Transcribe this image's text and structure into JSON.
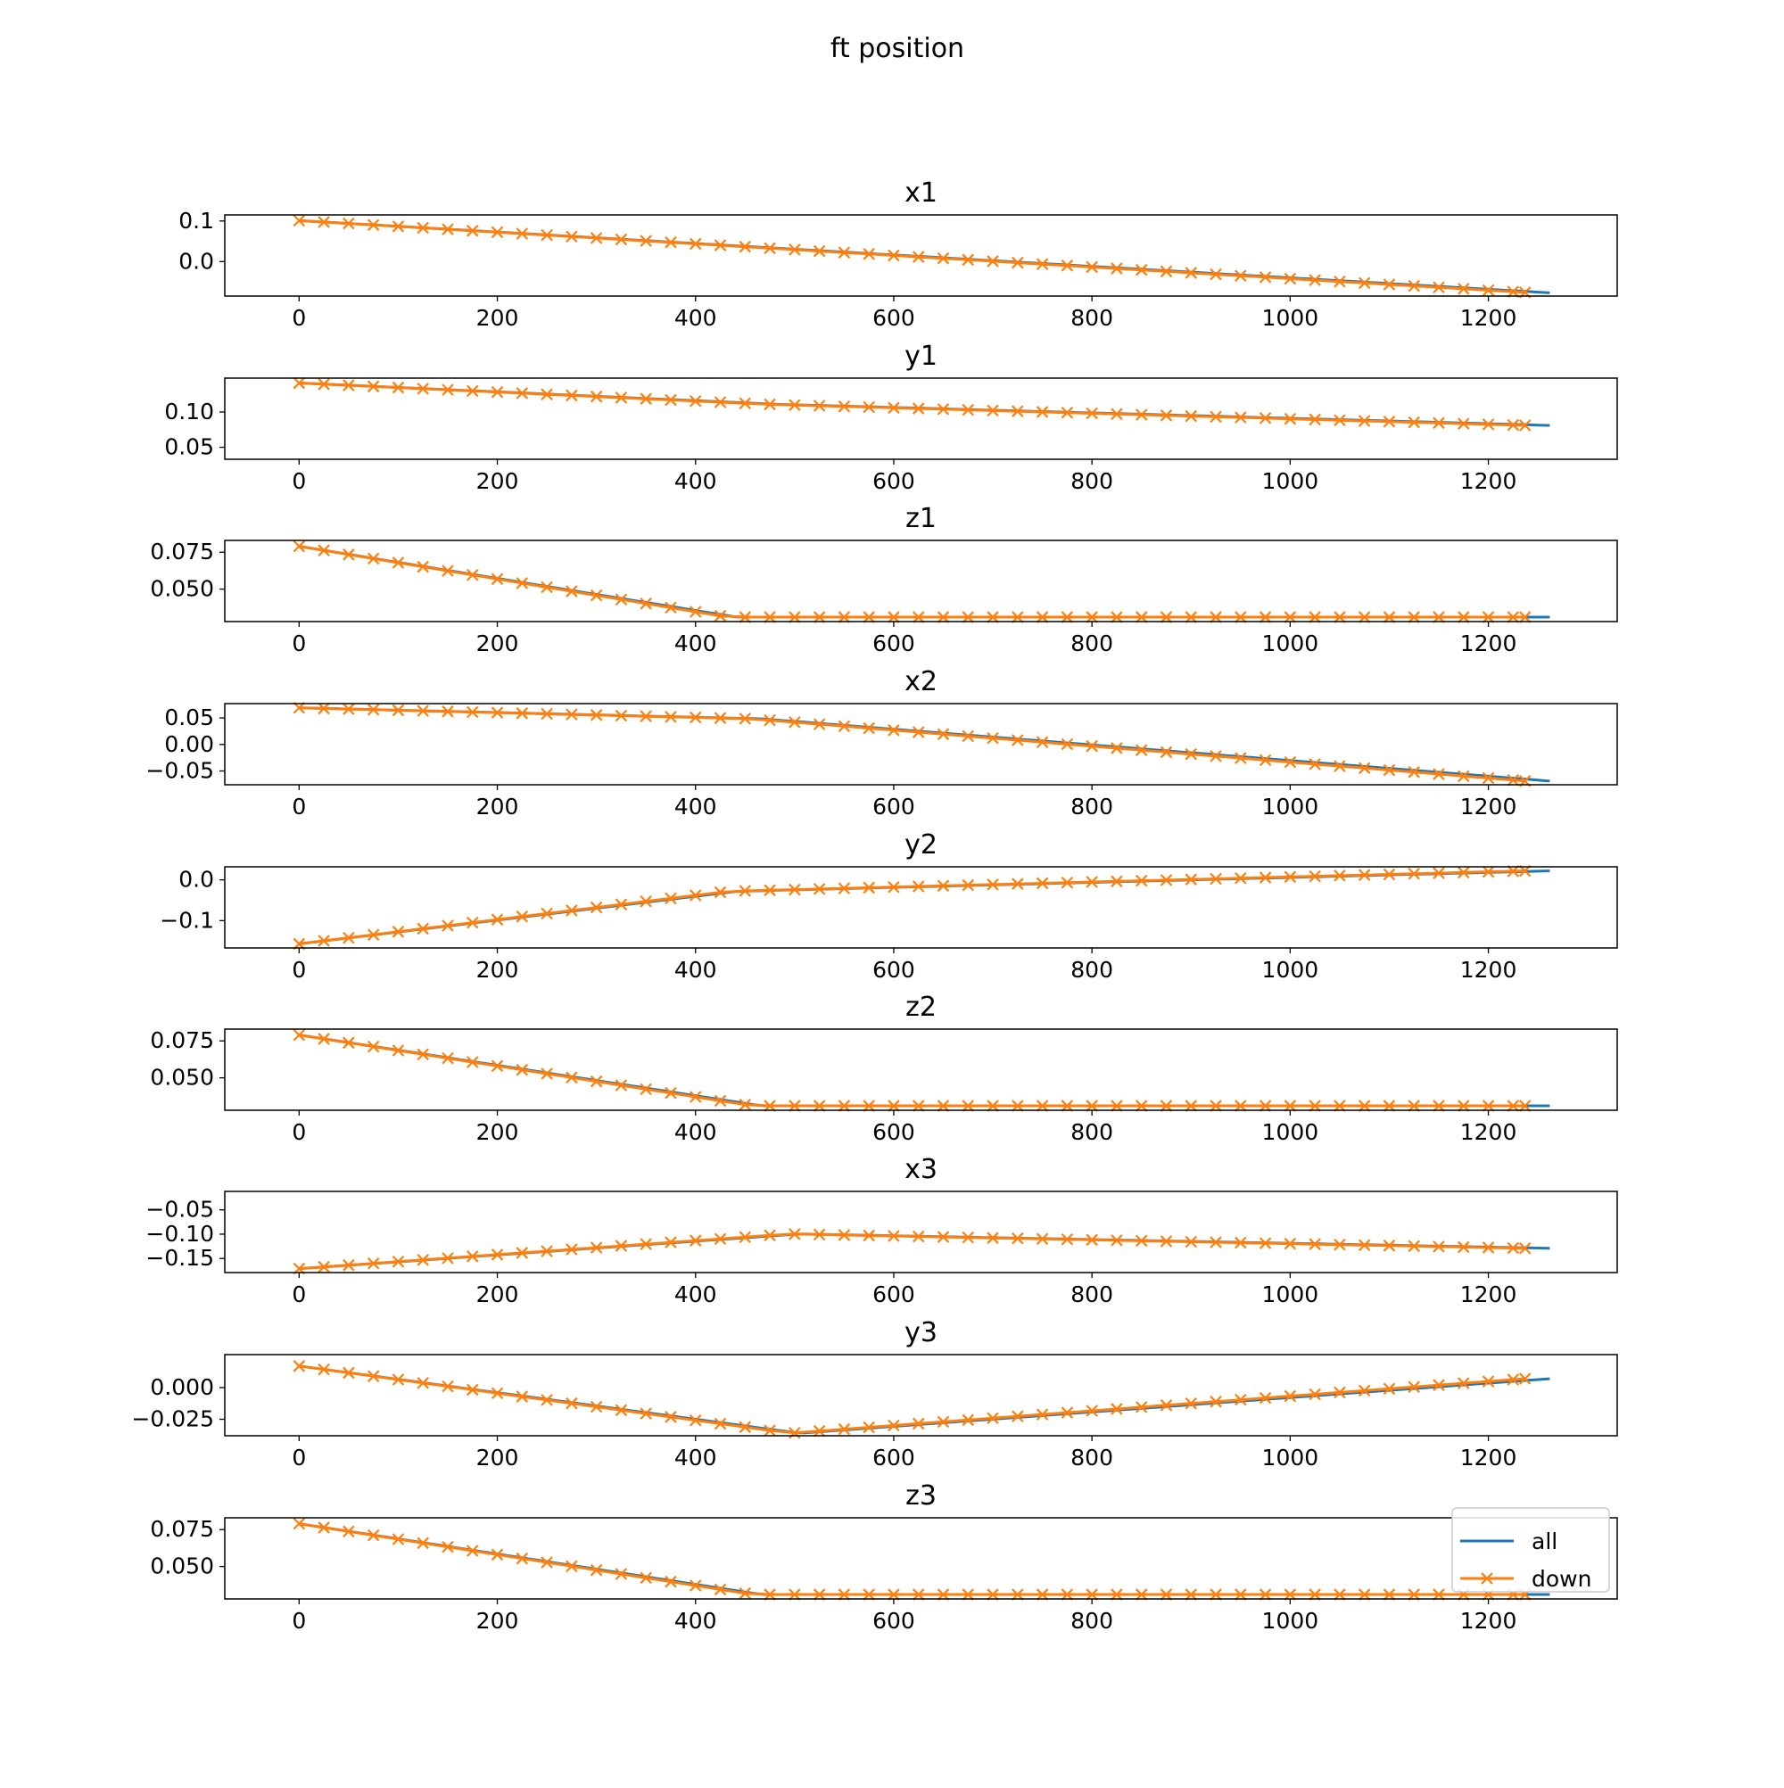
{
  "figure": {
    "suptitle": "ft position"
  },
  "colors": {
    "all": "#1f77b4",
    "down": "#ff7f0e",
    "axes": "#000000",
    "legend_border": "#cccccc"
  },
  "legend": {
    "entries": [
      "all",
      "down"
    ],
    "placement": "lower-right of last subplot"
  },
  "chart_data": [
    {
      "type": "line",
      "title": "x1",
      "xlim": [
        -75,
        1330
      ],
      "ylim": [
        -0.085,
        0.115
      ],
      "xticks": [
        0,
        200,
        400,
        600,
        800,
        1000,
        1200
      ],
      "xtick_labels": [
        "0",
        "200",
        "400",
        "600",
        "800",
        "1000",
        "1200"
      ],
      "yticks": [
        0.1,
        0.0
      ],
      "ytick_labels": [
        "0.1",
        "0.0"
      ],
      "series": [
        {
          "name": "all",
          "x": [
            0,
            1262
          ],
          "y": [
            0.101,
            -0.077
          ]
        },
        {
          "name": "down",
          "x": [
            0,
            1237
          ],
          "y": [
            0.101,
            -0.076
          ]
        }
      ]
    },
    {
      "type": "line",
      "title": "y1",
      "xlim": [
        -75,
        1330
      ],
      "ylim": [
        0.033,
        0.148
      ],
      "xticks": [
        0,
        200,
        400,
        600,
        800,
        1000,
        1200
      ],
      "xtick_labels": [
        "0",
        "200",
        "400",
        "600",
        "800",
        "1000",
        "1200"
      ],
      "yticks": [
        0.1,
        0.05
      ],
      "ytick_labels": [
        "0.10",
        "0.05"
      ],
      "series": [
        {
          "name": "all",
          "x": [
            0,
            1262
          ],
          "y": [
            0.141,
            0.081
          ]
        },
        {
          "name": "down",
          "x": [
            0,
            1237
          ],
          "y": [
            0.141,
            0.081
          ]
        }
      ]
    },
    {
      "type": "line",
      "title": "z1",
      "xlim": [
        -75,
        1330
      ],
      "ylim": [
        0.028,
        0.083
      ],
      "xticks": [
        0,
        200,
        400,
        600,
        800,
        1000,
        1200
      ],
      "xtick_labels": [
        "0",
        "200",
        "400",
        "600",
        "800",
        "1000",
        "1200"
      ],
      "yticks": [
        0.075,
        0.05
      ],
      "ytick_labels": [
        "0.075",
        "0.050"
      ],
      "series": [
        {
          "name": "all",
          "x": [
            0,
            1262
          ],
          "y": [
            0.079,
            0.031
          ]
        },
        {
          "name": "down",
          "x": [
            0,
            1237
          ],
          "y": [
            0.079,
            0.031
          ]
        }
      ]
    },
    {
      "type": "line",
      "title": "x2",
      "xlim": [
        -75,
        1330
      ],
      "ylim": [
        -0.076,
        0.077
      ],
      "xticks": [
        0,
        200,
        400,
        600,
        800,
        1000,
        1200
      ],
      "xtick_labels": [
        "0",
        "200",
        "400",
        "600",
        "800",
        "1000",
        "1200"
      ],
      "yticks": [
        0.05,
        0.0,
        -0.05
      ],
      "ytick_labels": [
        "0.05",
        "0.00",
        "−0.05"
      ],
      "series": [
        {
          "name": "all",
          "x": [
            0,
            1262
          ],
          "y": [
            0.069,
            -0.069
          ]
        },
        {
          "name": "down",
          "x": [
            0,
            1237
          ],
          "y": [
            0.069,
            -0.069
          ]
        }
      ]
    },
    {
      "type": "line",
      "title": "y2",
      "xlim": [
        -75,
        1330
      ],
      "ylim": [
        -0.167,
        0.032
      ],
      "xticks": [
        0,
        200,
        400,
        600,
        800,
        1000,
        1200
      ],
      "xtick_labels": [
        "0",
        "200",
        "400",
        "600",
        "800",
        "1000",
        "1200"
      ],
      "yticks": [
        0.0,
        -0.1
      ],
      "ytick_labels": [
        "0.0",
        "−0.1"
      ],
      "series": [
        {
          "name": "all",
          "x": [
            0,
            1262
          ],
          "y": [
            -0.157,
            0.022
          ]
        },
        {
          "name": "down",
          "x": [
            0,
            1237
          ],
          "y": [
            -0.157,
            0.022
          ]
        }
      ]
    },
    {
      "type": "line",
      "title": "z2",
      "xlim": [
        -75,
        1330
      ],
      "ylim": [
        0.028,
        0.083
      ],
      "xticks": [
        0,
        200,
        400,
        600,
        800,
        1000,
        1200
      ],
      "xtick_labels": [
        "0",
        "200",
        "400",
        "600",
        "800",
        "1000",
        "1200"
      ],
      "yticks": [
        0.075,
        0.05
      ],
      "ytick_labels": [
        "0.075",
        "0.050"
      ],
      "series": [
        {
          "name": "all",
          "x": [
            0,
            1262
          ],
          "y": [
            0.079,
            0.031
          ]
        },
        {
          "name": "down",
          "x": [
            0,
            1237
          ],
          "y": [
            0.079,
            0.031
          ]
        }
      ]
    },
    {
      "type": "line",
      "title": "x3",
      "xlim": [
        -75,
        1330
      ],
      "ylim": [
        -0.179,
        -0.012
      ],
      "xticks": [
        0,
        200,
        400,
        600,
        800,
        1000,
        1200
      ],
      "xtick_labels": [
        "0",
        "200",
        "400",
        "600",
        "800",
        "1000",
        "1200"
      ],
      "yticks": [
        -0.05,
        -0.1,
        -0.15
      ],
      "ytick_labels": [
        "−0.05",
        "−0.10",
        "−0.15"
      ],
      "series": [
        {
          "name": "all",
          "x": [
            0,
            1262
          ],
          "y": [
            -0.171,
            -0.129
          ]
        },
        {
          "name": "down",
          "x": [
            0,
            1237
          ],
          "y": [
            -0.171,
            -0.129
          ]
        }
      ]
    },
    {
      "type": "line",
      "title": "y3",
      "xlim": [
        -75,
        1330
      ],
      "ylim": [
        -0.038,
        0.026
      ],
      "xticks": [
        0,
        200,
        400,
        600,
        800,
        1000,
        1200
      ],
      "xtick_labels": [
        "0",
        "200",
        "400",
        "600",
        "800",
        "1000",
        "1200"
      ],
      "yticks": [
        0.0,
        -0.025
      ],
      "ytick_labels": [
        "0.000",
        "−0.025"
      ],
      "series": [
        {
          "name": "all",
          "x": [
            0,
            1262
          ],
          "y": [
            0.017,
            0.007
          ]
        },
        {
          "name": "down",
          "x": [
            0,
            1237
          ],
          "y": [
            0.017,
            0.007
          ]
        }
      ]
    },
    {
      "type": "line",
      "title": "z3",
      "xlim": [
        -75,
        1330
      ],
      "ylim": [
        0.028,
        0.083
      ],
      "xticks": [
        0,
        200,
        400,
        600,
        800,
        1000,
        1200
      ],
      "xtick_labels": [
        "0",
        "200",
        "400",
        "600",
        "800",
        "1000",
        "1200"
      ],
      "yticks": [
        0.075,
        0.05
      ],
      "ytick_labels": [
        "0.075",
        "0.050"
      ],
      "series": [
        {
          "name": "all",
          "x": [
            0,
            1262
          ],
          "y": [
            0.079,
            0.031
          ]
        },
        {
          "name": "down",
          "x": [
            0,
            1237
          ],
          "y": [
            0.079,
            0.031
          ]
        }
      ]
    }
  ]
}
